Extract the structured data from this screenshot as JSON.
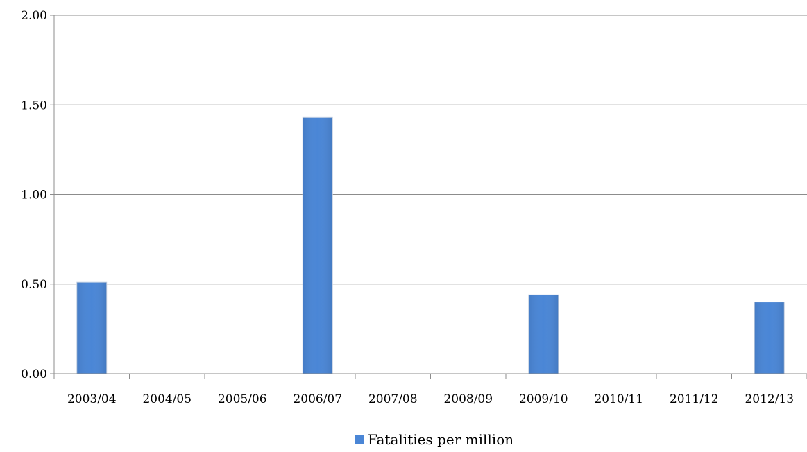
{
  "chart_data": {
    "type": "bar",
    "title": "",
    "xlabel": "",
    "ylabel": "",
    "categories": [
      "2003/04",
      "2004/05",
      "2005/06",
      "2006/07",
      "2007/08",
      "2008/09",
      "2009/10",
      "2010/11",
      "2011/12",
      "2012/13"
    ],
    "series": [
      {
        "name": "Fatalities per million",
        "values": [
          0.51,
          0,
          0,
          1.43,
          0,
          0,
          0.44,
          0,
          0,
          0.4
        ],
        "color": "#4a86d6"
      }
    ],
    "ylim": [
      0,
      2
    ],
    "y_ticks": [
      "0.00",
      "0.50",
      "1.00",
      "1.50",
      "2.00"
    ],
    "grid": true,
    "legend_position": "bottom-center"
  }
}
